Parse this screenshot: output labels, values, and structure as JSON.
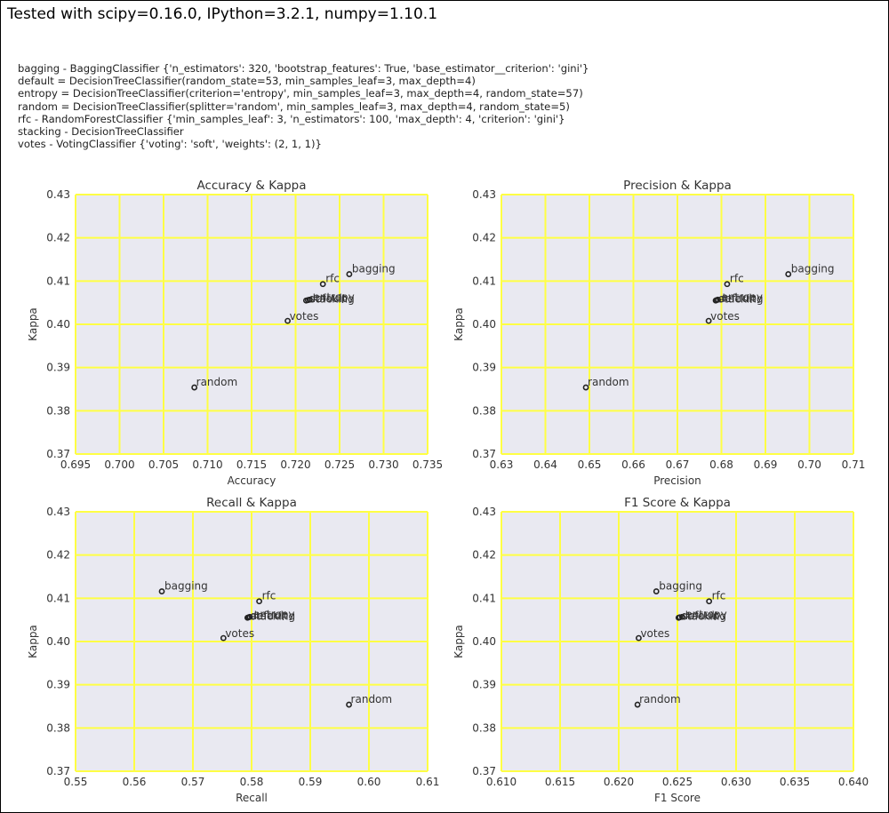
{
  "header": "Tested with scipy=0.16.0, IPython=3.2.1, numpy=1.10.1",
  "params": [
    "bagging -  BaggingClassifier {'n_estimators': 320, 'bootstrap_features': True, 'base_estimator__criterion': 'gini'}",
    "default = DecisionTreeClassifier(random_state=53, min_samples_leaf=3, max_depth=4)",
    "entropy = DecisionTreeClassifier(criterion='entropy', min_samples_leaf=3, max_depth=4, random_state=57)",
    "random = DecisionTreeClassifier(splitter='random', min_samples_leaf=3, max_depth=4, random_state=5)",
    "rfc - RandomForestClassifier  {'min_samples_leaf': 3, 'n_estimators': 100, 'max_depth': 4, 'criterion': 'gini'}",
    "stacking - DecisionTreeClassifier",
    "votes - VotingClassifier {'voting': 'soft', 'weights': (2, 1, 1)}"
  ],
  "colors": {
    "plot_bg": "#e9e9f1",
    "grid": "#ffff44",
    "point": "#222222",
    "text": "#333333"
  },
  "chart_data": [
    {
      "type": "scatter",
      "title": "Accuracy & Kappa",
      "xlabel": "Accuracy",
      "ylabel": "Kappa",
      "xlim": [
        0.695,
        0.735
      ],
      "ylim": [
        0.37,
        0.43
      ],
      "xticks": [
        0.695,
        0.7,
        0.705,
        0.71,
        0.715,
        0.72,
        0.725,
        0.73,
        0.735
      ],
      "xtick_labels": [
        "0.695",
        "0.700",
        "0.705",
        "0.710",
        "0.715",
        "0.720",
        "0.725",
        "0.730",
        "0.735"
      ],
      "yticks": [
        0.37,
        0.38,
        0.39,
        0.4,
        0.41,
        0.42,
        0.43
      ],
      "ytick_labels": [
        "0.37",
        "0.38",
        "0.39",
        "0.40",
        "0.41",
        "0.42",
        "0.43"
      ],
      "points": [
        {
          "label": "bagging",
          "x": 0.7261,
          "y": 0.4116
        },
        {
          "label": "rfc",
          "x": 0.7231,
          "y": 0.4093
        },
        {
          "label": "default",
          "x": 0.7212,
          "y": 0.4055
        },
        {
          "label": "entropy",
          "x": 0.7216,
          "y": 0.4057
        },
        {
          "label": "stacking",
          "x": 0.7214,
          "y": 0.4056
        },
        {
          "label": "votes",
          "x": 0.7191,
          "y": 0.4008
        },
        {
          "label": "random",
          "x": 0.7085,
          "y": 0.3854
        }
      ]
    },
    {
      "type": "scatter",
      "title": "Precision & Kappa",
      "xlabel": "Precision",
      "ylabel": "Kappa",
      "xlim": [
        0.63,
        0.71
      ],
      "ylim": [
        0.37,
        0.43
      ],
      "xticks": [
        0.63,
        0.64,
        0.65,
        0.66,
        0.67,
        0.68,
        0.69,
        0.7,
        0.71
      ],
      "xtick_labels": [
        "0.63",
        "0.64",
        "0.65",
        "0.66",
        "0.67",
        "0.68",
        "0.69",
        "0.70",
        "0.71"
      ],
      "yticks": [
        0.37,
        0.38,
        0.39,
        0.4,
        0.41,
        0.42,
        0.43
      ],
      "ytick_labels": [
        "0.37",
        "0.38",
        "0.39",
        "0.40",
        "0.41",
        "0.42",
        "0.43"
      ],
      "points": [
        {
          "label": "bagging",
          "x": 0.6952,
          "y": 0.4116
        },
        {
          "label": "rfc",
          "x": 0.6813,
          "y": 0.4093
        },
        {
          "label": "default",
          "x": 0.6787,
          "y": 0.4055
        },
        {
          "label": "entropy",
          "x": 0.6792,
          "y": 0.4057
        },
        {
          "label": "stacking",
          "x": 0.6789,
          "y": 0.4056
        },
        {
          "label": "votes",
          "x": 0.6771,
          "y": 0.4008
        },
        {
          "label": "random",
          "x": 0.6492,
          "y": 0.3854
        }
      ]
    },
    {
      "type": "scatter",
      "title": "Recall & Kappa",
      "xlabel": "Recall",
      "ylabel": "Kappa",
      "xlim": [
        0.55,
        0.61
      ],
      "ylim": [
        0.37,
        0.43
      ],
      "xticks": [
        0.55,
        0.56,
        0.57,
        0.58,
        0.59,
        0.6,
        0.61
      ],
      "xtick_labels": [
        "0.55",
        "0.56",
        "0.57",
        "0.58",
        "0.59",
        "0.60",
        "0.61"
      ],
      "yticks": [
        0.37,
        0.38,
        0.39,
        0.4,
        0.41,
        0.42,
        0.43
      ],
      "ytick_labels": [
        "0.37",
        "0.38",
        "0.39",
        "0.40",
        "0.41",
        "0.42",
        "0.43"
      ],
      "points": [
        {
          "label": "bagging",
          "x": 0.5647,
          "y": 0.4116
        },
        {
          "label": "rfc",
          "x": 0.5813,
          "y": 0.4093
        },
        {
          "label": "default",
          "x": 0.5793,
          "y": 0.4055
        },
        {
          "label": "entropy",
          "x": 0.5797,
          "y": 0.4057
        },
        {
          "label": "stacking",
          "x": 0.5795,
          "y": 0.4056
        },
        {
          "label": "votes",
          "x": 0.5752,
          "y": 0.4008
        },
        {
          "label": "random",
          "x": 0.5966,
          "y": 0.3854
        }
      ]
    },
    {
      "type": "scatter",
      "title": "F1 Score & Kappa",
      "xlabel": "F1 Score",
      "ylabel": "Kappa",
      "xlim": [
        0.61,
        0.64
      ],
      "ylim": [
        0.37,
        0.43
      ],
      "xticks": [
        0.61,
        0.615,
        0.62,
        0.625,
        0.63,
        0.635,
        0.64
      ],
      "xtick_labels": [
        "0.610",
        "0.615",
        "0.620",
        "0.625",
        "0.630",
        "0.635",
        "0.640"
      ],
      "yticks": [
        0.37,
        0.38,
        0.39,
        0.4,
        0.41,
        0.42,
        0.43
      ],
      "ytick_labels": [
        "0.37",
        "0.38",
        "0.39",
        "0.40",
        "0.41",
        "0.42",
        "0.43"
      ],
      "points": [
        {
          "label": "bagging",
          "x": 0.6232,
          "y": 0.4116
        },
        {
          "label": "rfc",
          "x": 0.6277,
          "y": 0.4093
        },
        {
          "label": "default",
          "x": 0.6251,
          "y": 0.4055
        },
        {
          "label": "entropy",
          "x": 0.6254,
          "y": 0.4057
        },
        {
          "label": "stacking",
          "x": 0.6252,
          "y": 0.4056
        },
        {
          "label": "votes",
          "x": 0.6217,
          "y": 0.4008
        },
        {
          "label": "random",
          "x": 0.6216,
          "y": 0.3854
        }
      ]
    }
  ]
}
